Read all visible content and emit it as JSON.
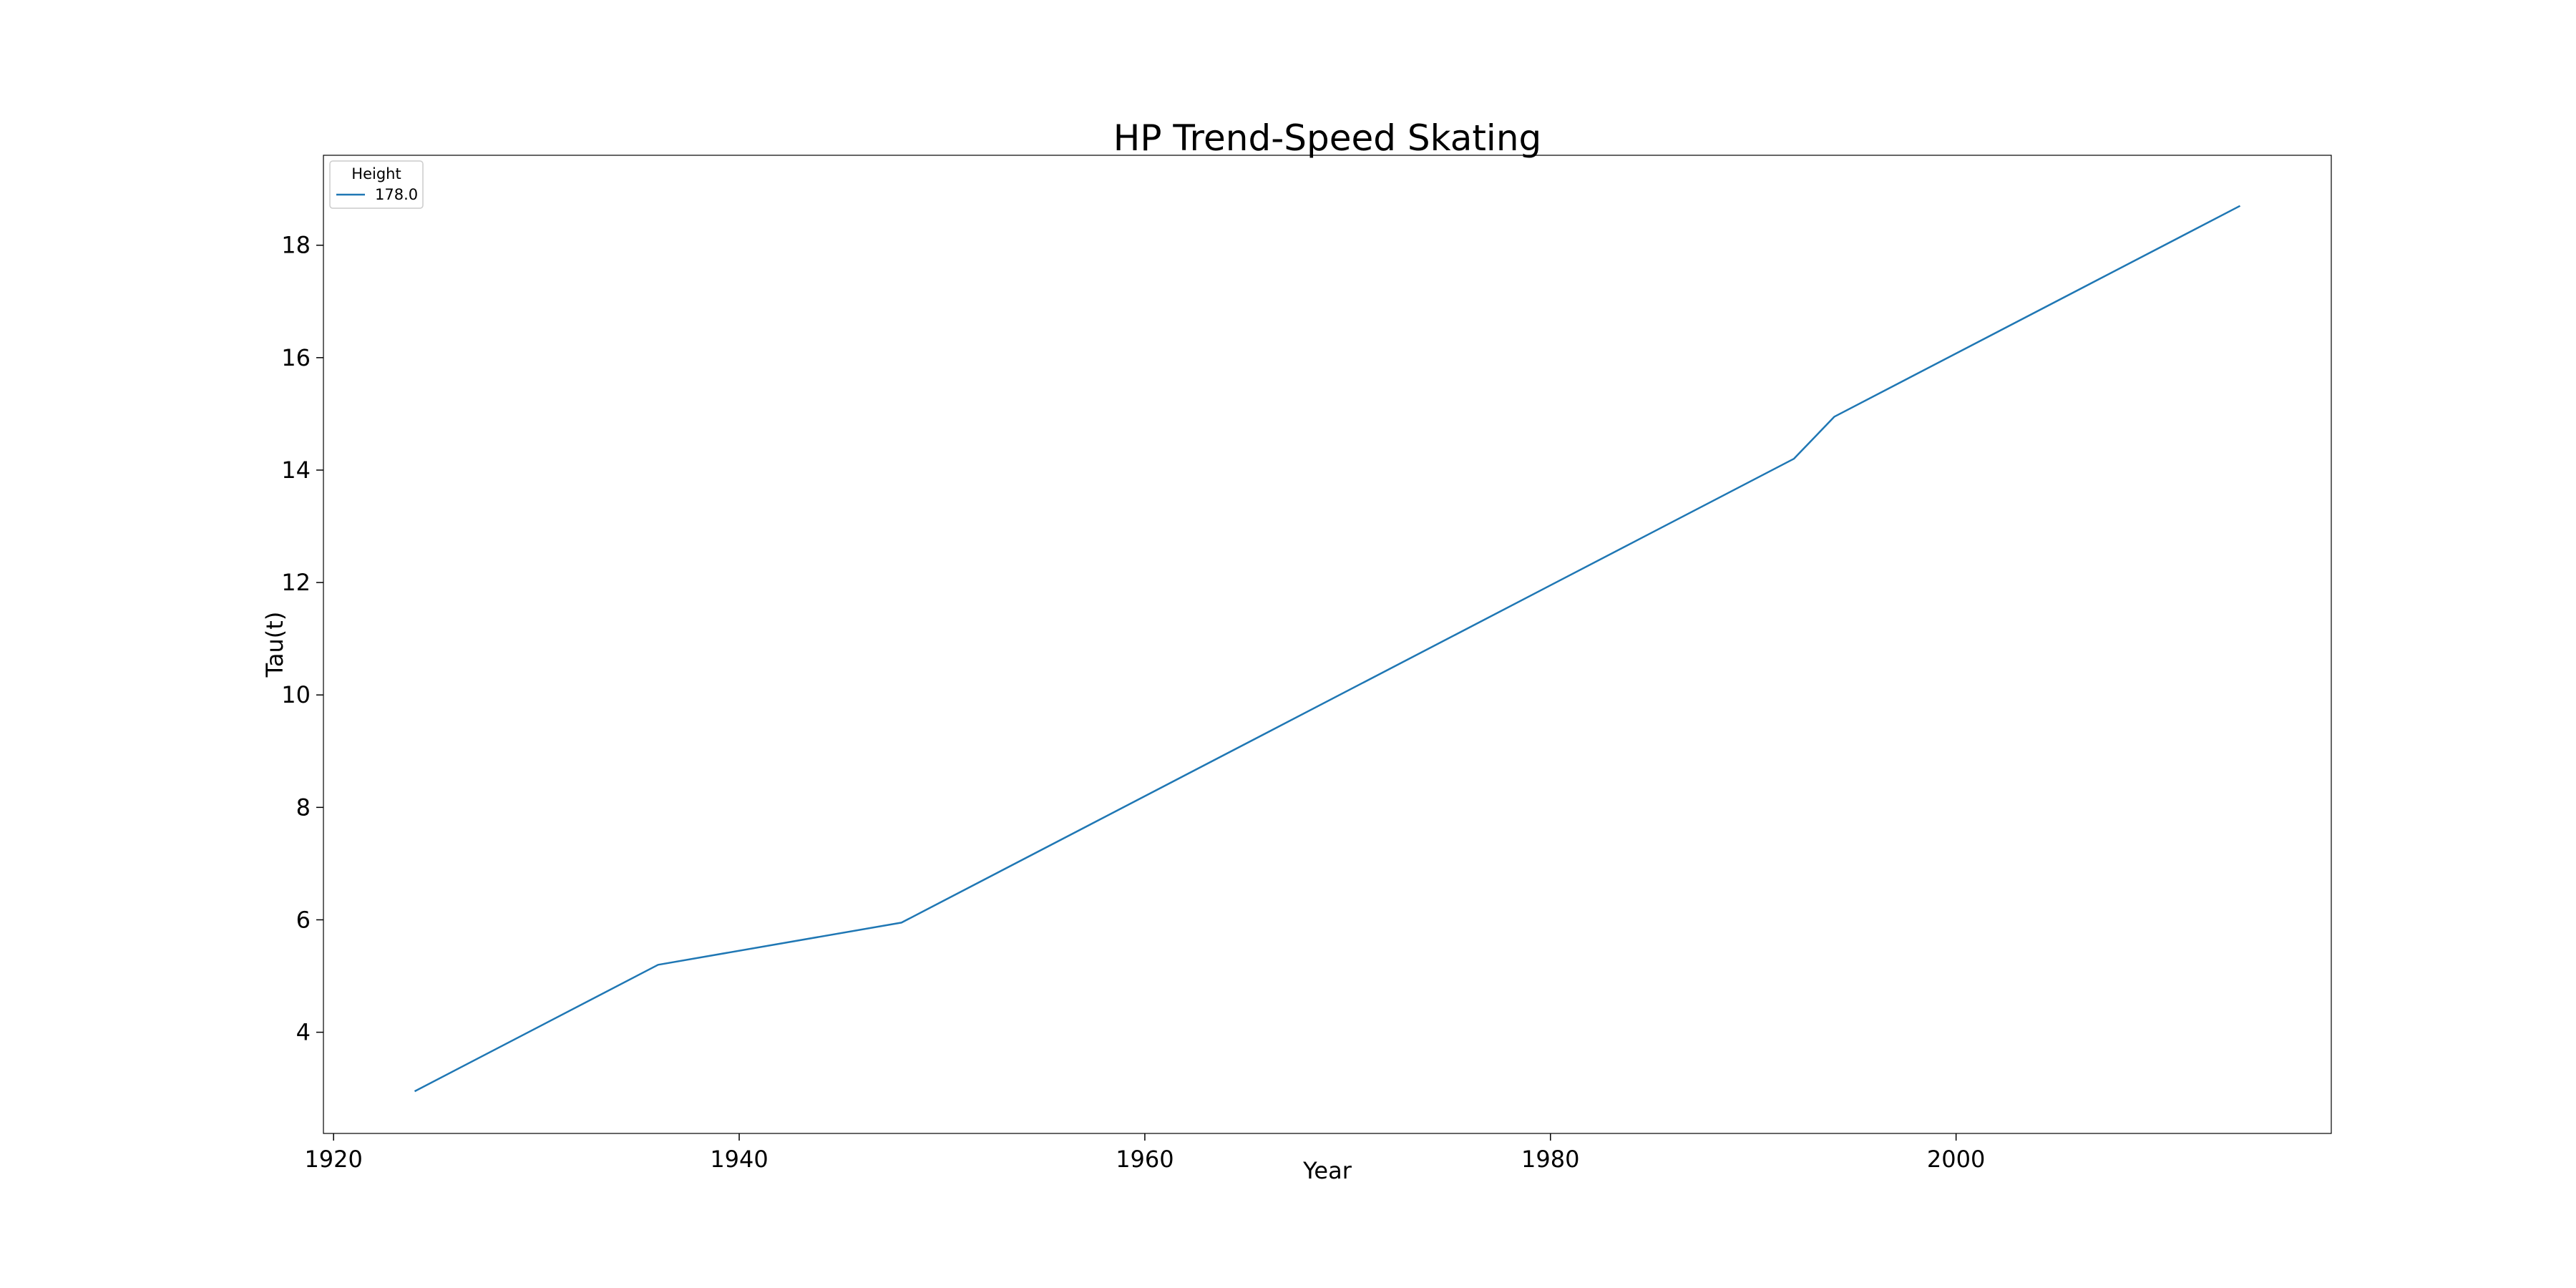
{
  "chart_data": {
    "type": "line",
    "title": "HP Trend-Speed Skating",
    "xlabel": "Year",
    "ylabel": "Tau(t)",
    "xlim": [
      1919.5,
      2018.5
    ],
    "ylim": [
      2.2,
      19.6
    ],
    "xticks": [
      1920,
      1940,
      1960,
      1980,
      2000
    ],
    "yticks": [
      4,
      6,
      8,
      10,
      12,
      14,
      16,
      18
    ],
    "grid": false,
    "legend": {
      "title": "Height",
      "placement": "top-left"
    },
    "series": [
      {
        "name": "178.0",
        "color": "#1f77b4",
        "x": [
          1924,
          1936,
          1948,
          1992,
          1994,
          2014
        ],
        "y": [
          2.95,
          5.2,
          5.95,
          14.2,
          14.95,
          18.7
        ]
      }
    ]
  }
}
